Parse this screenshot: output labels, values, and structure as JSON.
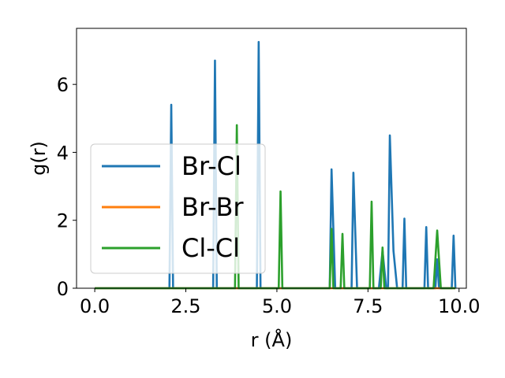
{
  "chart_data": {
    "type": "line",
    "title": "",
    "xlabel": "r (Å)",
    "ylabel": "g(r)",
    "xlim": [
      -0.5,
      10.2
    ],
    "ylim": [
      0,
      7.65
    ],
    "xticks": [
      0.0,
      2.5,
      5.0,
      7.5,
      10.0
    ],
    "xtick_labels": [
      "0.0",
      "2.5",
      "5.0",
      "7.5",
      "10.0"
    ],
    "yticks": [
      0,
      2,
      4,
      6
    ],
    "ytick_labels": [
      "0",
      "2",
      "4",
      "6"
    ],
    "grid": false,
    "legend_position": "center-left",
    "series": [
      {
        "name": "Br-Cl",
        "color": "#1f77b4",
        "points": [
          [
            0,
            0
          ],
          [
            2.05,
            0
          ],
          [
            2.1,
            5.4
          ],
          [
            2.15,
            0
          ],
          [
            3.25,
            0
          ],
          [
            3.3,
            6.7
          ],
          [
            3.35,
            0
          ],
          [
            4.45,
            0
          ],
          [
            4.5,
            7.25
          ],
          [
            4.55,
            0
          ],
          [
            6.45,
            0
          ],
          [
            6.5,
            3.5
          ],
          [
            6.6,
            0
          ],
          [
            7.05,
            0
          ],
          [
            7.1,
            3.4
          ],
          [
            7.2,
            0
          ],
          [
            7.8,
            0
          ],
          [
            7.9,
            1.1
          ],
          [
            8.0,
            0
          ],
          [
            8.05,
            0
          ],
          [
            8.1,
            4.5
          ],
          [
            8.2,
            1.1
          ],
          [
            8.3,
            0
          ],
          [
            8.45,
            0
          ],
          [
            8.5,
            2.05
          ],
          [
            8.55,
            0
          ],
          [
            9.05,
            0
          ],
          [
            9.1,
            1.8
          ],
          [
            9.15,
            0
          ],
          [
            9.35,
            0
          ],
          [
            9.4,
            0.85
          ],
          [
            9.45,
            0
          ],
          [
            9.8,
            0
          ],
          [
            9.85,
            1.55
          ],
          [
            9.9,
            0
          ]
        ]
      },
      {
        "name": "Br-Br",
        "color": "#ff7f0e",
        "points": [
          [
            0,
            0
          ],
          [
            9.9,
            0
          ]
        ]
      },
      {
        "name": "Cl-Cl",
        "color": "#2ca02c",
        "points": [
          [
            0,
            0
          ],
          [
            3.85,
            0
          ],
          [
            3.9,
            4.8
          ],
          [
            3.95,
            0
          ],
          [
            5.05,
            0
          ],
          [
            5.1,
            2.85
          ],
          [
            5.15,
            0
          ],
          [
            6.45,
            0
          ],
          [
            6.5,
            1.75
          ],
          [
            6.55,
            0
          ],
          [
            6.75,
            0
          ],
          [
            6.8,
            1.6
          ],
          [
            6.85,
            0
          ],
          [
            7.55,
            0
          ],
          [
            7.6,
            2.55
          ],
          [
            7.65,
            0
          ],
          [
            7.85,
            0
          ],
          [
            7.9,
            1.2
          ],
          [
            7.95,
            0
          ],
          [
            9.3,
            0
          ],
          [
            9.4,
            1.7
          ],
          [
            9.5,
            0
          ],
          [
            9.9,
            0
          ]
        ]
      }
    ]
  }
}
